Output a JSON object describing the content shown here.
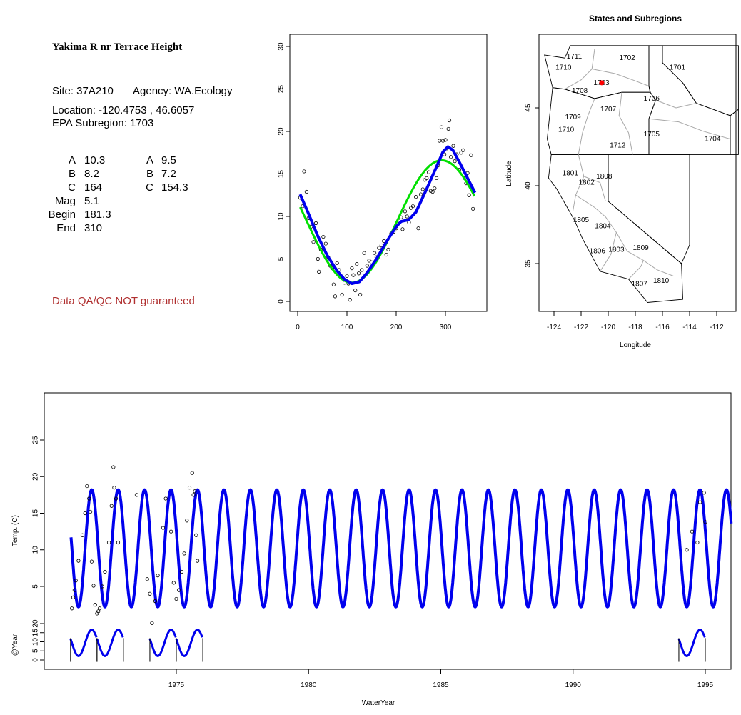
{
  "info": {
    "station_title": "Yakima R nr Terrace Height",
    "site_label": "Site: 37A210",
    "agency_label": "Agency: WA.Ecology",
    "location_label": "Location: -120.4753 , 46.6057",
    "subregion_label": "EPA Subregion: 1703",
    "params_left": [
      {
        "name": "A",
        "value": "10.3"
      },
      {
        "name": "B",
        "value": "8.2"
      },
      {
        "name": "C",
        "value": "164"
      },
      {
        "name": "Mag",
        "value": "5.1"
      },
      {
        "name": "Begin",
        "value": "181.3"
      },
      {
        "name": "End",
        "value": "310"
      }
    ],
    "params_right": [
      {
        "name": "A",
        "value": "9.5"
      },
      {
        "name": "B",
        "value": "7.2"
      },
      {
        "name": "C",
        "value": "154.3"
      }
    ],
    "qa_note": "Data QA/QC NOT guaranteed",
    "qa_color": "#b03030"
  },
  "chart_data": [
    {
      "type": "scatter",
      "title": "",
      "xlabel": "",
      "ylabel": "",
      "xlim": [
        0,
        365
      ],
      "ylim": [
        0,
        30
      ],
      "x_ticks": [
        0,
        100,
        200,
        300
      ],
      "y_ticks": [
        0,
        5,
        10,
        15,
        20,
        25,
        30
      ],
      "points": [
        [
          5,
          12.2
        ],
        [
          10,
          11.2
        ],
        [
          13,
          15.3
        ],
        [
          18,
          12.9
        ],
        [
          22,
          9.8
        ],
        [
          27,
          8.8
        ],
        [
          32,
          7.0
        ],
        [
          37,
          9.2
        ],
        [
          41,
          5.0
        ],
        [
          43,
          3.5
        ],
        [
          47,
          6.1
        ],
        [
          52,
          7.6
        ],
        [
          57,
          6.8
        ],
        [
          62,
          5.2
        ],
        [
          66,
          4.2
        ],
        [
          70,
          3.9
        ],
        [
          73,
          2.0
        ],
        [
          76,
          0.6
        ],
        [
          80,
          4.5
        ],
        [
          84,
          3.7
        ],
        [
          90,
          0.8
        ],
        [
          95,
          2.2
        ],
        [
          100,
          3.0
        ],
        [
          103,
          2.1
        ],
        [
          106,
          0.2
        ],
        [
          110,
          3.9
        ],
        [
          113,
          3.1
        ],
        [
          117,
          1.3
        ],
        [
          120,
          4.4
        ],
        [
          124,
          3.3
        ],
        [
          127,
          0.8
        ],
        [
          130,
          3.7
        ],
        [
          135,
          5.7
        ],
        [
          141,
          4.2
        ],
        [
          145,
          4.8
        ],
        [
          150,
          4.6
        ],
        [
          156,
          5.7
        ],
        [
          160,
          5.2
        ],
        [
          165,
          6.3
        ],
        [
          170,
          6.6
        ],
        [
          175,
          7.1
        ],
        [
          180,
          5.5
        ],
        [
          184,
          6.1
        ],
        [
          190,
          8.0
        ],
        [
          195,
          8.2
        ],
        [
          200,
          8.6
        ],
        [
          205,
          9.5
        ],
        [
          210,
          9.9
        ],
        [
          213,
          8.5
        ],
        [
          218,
          10.6
        ],
        [
          222,
          10.0
        ],
        [
          226,
          9.3
        ],
        [
          230,
          11.0
        ],
        [
          234,
          11.2
        ],
        [
          240,
          12.3
        ],
        [
          245,
          8.6
        ],
        [
          250,
          12.6
        ],
        [
          254,
          13.2
        ],
        [
          258,
          14.3
        ],
        [
          262,
          14.5
        ],
        [
          266,
          15.2
        ],
        [
          270,
          13.0
        ],
        [
          274,
          12.9
        ],
        [
          278,
          13.3
        ],
        [
          282,
          14.5
        ],
        [
          285,
          16.0
        ],
        [
          288,
          18.9
        ],
        [
          292,
          20.5
        ],
        [
          295,
          18.9
        ],
        [
          298,
          17.3
        ],
        [
          300,
          19.0
        ],
        [
          303,
          18.0
        ],
        [
          306,
          20.3
        ],
        [
          308,
          21.3
        ],
        [
          311,
          17.0
        ],
        [
          316,
          18.3
        ],
        [
          319,
          16.5
        ],
        [
          323,
          17.3
        ],
        [
          328,
          15.5
        ],
        [
          332,
          17.5
        ],
        [
          336,
          17.8
        ],
        [
          339,
          14.5
        ],
        [
          342,
          13.9
        ],
        [
          345,
          15.1
        ],
        [
          348,
          12.5
        ],
        [
          352,
          17.2
        ],
        [
          356,
          10.9
        ]
      ],
      "series": [
        {
          "name": "",
          "color": "#00e000"
        },
        {
          "name": "",
          "color": "#0000ee"
        }
      ]
    },
    {
      "type": "map",
      "title": "States and Subregions",
      "xlabel": "Longitude",
      "ylabel": "Latitude",
      "xlim": [
        -125.3,
        -110.4
      ],
      "ylim": [
        32.4,
        49.6
      ],
      "x_ticks": [
        -124,
        -122,
        -120,
        -118,
        -116,
        -114,
        -112
      ],
      "y_ticks": [
        35,
        40,
        45
      ],
      "regions": [
        {
          "label": "1711",
          "lon": -122.5,
          "lat": 48.3
        },
        {
          "label": "1702",
          "lon": -118.6,
          "lat": 48.2
        },
        {
          "label": "1701",
          "lon": -114.9,
          "lat": 47.6
        },
        {
          "label": "1710",
          "lon": -123.3,
          "lat": 47.6
        },
        {
          "label": "1703",
          "lon": -120.5,
          "lat": 46.6
        },
        {
          "label": "1708",
          "lon": -122.1,
          "lat": 46.1
        },
        {
          "label": "1706",
          "lon": -116.8,
          "lat": 45.6
        },
        {
          "label": "1707",
          "lon": -120.0,
          "lat": 44.9
        },
        {
          "label": "1709",
          "lon": -122.6,
          "lat": 44.4
        },
        {
          "label": "1710",
          "lon": -123.1,
          "lat": 43.6
        },
        {
          "label": "1705",
          "lon": -116.8,
          "lat": 43.3
        },
        {
          "label": "1704",
          "lon": -112.3,
          "lat": 43.0
        },
        {
          "label": "1712",
          "lon": -119.3,
          "lat": 42.6
        },
        {
          "label": "1801",
          "lon": -122.8,
          "lat": 40.8
        },
        {
          "label": "1808",
          "lon": -120.3,
          "lat": 40.6
        },
        {
          "label": "1802",
          "lon": -121.6,
          "lat": 40.2
        },
        {
          "label": "1805",
          "lon": -122.0,
          "lat": 37.8
        },
        {
          "label": "1804",
          "lon": -120.4,
          "lat": 37.4
        },
        {
          "label": "1806",
          "lon": -120.8,
          "lat": 35.8
        },
        {
          "label": "1803",
          "lon": -119.4,
          "lat": 35.9
        },
        {
          "label": "1809",
          "lon": -117.6,
          "lat": 36.0
        },
        {
          "label": "1810",
          "lon": -116.1,
          "lat": 33.9
        },
        {
          "label": "1807",
          "lon": -117.7,
          "lat": 33.7
        }
      ],
      "marker": {
        "lon": -120.48,
        "lat": 46.61,
        "color": "#ff0000"
      }
    },
    {
      "type": "line",
      "title": "",
      "xlabel": "WaterYear",
      "ylabel": "Temp. (C)",
      "xlim": [
        1970.7,
        1995.7
      ],
      "ylim": [
        0,
        30
      ],
      "x_ticks": [
        1975,
        1980,
        1985,
        1990,
        1995
      ],
      "y_ticks": [
        5,
        10,
        15,
        20,
        25
      ],
      "year_range": [
        1971,
        1995
      ],
      "series": [
        {
          "name": "",
          "color": "#0000ee",
          "min": 2.2,
          "max": 18.2
        }
      ],
      "observations": [
        [
          1971.05,
          2.0
        ],
        [
          1971.1,
          3.5
        ],
        [
          1971.15,
          4.5
        ],
        [
          1971.2,
          5.8
        ],
        [
          1971.3,
          8.5
        ],
        [
          1971.45,
          12.0
        ],
        [
          1971.55,
          15.0
        ],
        [
          1971.62,
          18.7
        ],
        [
          1971.7,
          17.0
        ],
        [
          1971.75,
          15.2
        ],
        [
          1971.8,
          8.4
        ],
        [
          1971.87,
          5.1
        ],
        [
          1971.93,
          2.5
        ],
        [
          1972.0,
          1.3
        ],
        [
          1972.05,
          1.6
        ],
        [
          1972.1,
          2.0
        ],
        [
          1972.2,
          5.0
        ],
        [
          1972.3,
          7.0
        ],
        [
          1972.45,
          11.0
        ],
        [
          1972.55,
          16.0
        ],
        [
          1972.62,
          21.3
        ],
        [
          1972.65,
          18.5
        ],
        [
          1972.72,
          17.0
        ],
        [
          1972.8,
          11.0
        ],
        [
          1973.5,
          17.5
        ],
        [
          1973.9,
          6.0
        ],
        [
          1974.0,
          4.0
        ],
        [
          1974.08,
          0.0
        ],
        [
          1974.2,
          3.0
        ],
        [
          1974.3,
          6.5
        ],
        [
          1974.5,
          13.0
        ],
        [
          1974.6,
          17.0
        ],
        [
          1974.8,
          12.5
        ],
        [
          1974.9,
          5.5
        ],
        [
          1975.0,
          3.3
        ],
        [
          1975.1,
          4.5
        ],
        [
          1975.2,
          7.0
        ],
        [
          1975.3,
          9.5
        ],
        [
          1975.4,
          14.0
        ],
        [
          1975.5,
          18.5
        ],
        [
          1975.6,
          20.5
        ],
        [
          1975.65,
          17.5
        ],
        [
          1975.7,
          18.0
        ],
        [
          1975.75,
          12.0
        ],
        [
          1975.8,
          8.5
        ],
        [
          1994.3,
          10.0
        ],
        [
          1994.5,
          12.5
        ],
        [
          1994.7,
          11.0
        ],
        [
          1994.8,
          16.5
        ],
        [
          1994.95,
          17.8
        ],
        [
          1995.0,
          13.8
        ]
      ],
      "overlay_panel": {
        "ylabel": "@Year",
        "y_ticks": [
          0,
          5,
          10,
          15,
          20
        ],
        "ylim": [
          0,
          22
        ],
        "highlighted_years": [
          1971,
          1972,
          1974,
          1975,
          1994
        ]
      }
    }
  ]
}
